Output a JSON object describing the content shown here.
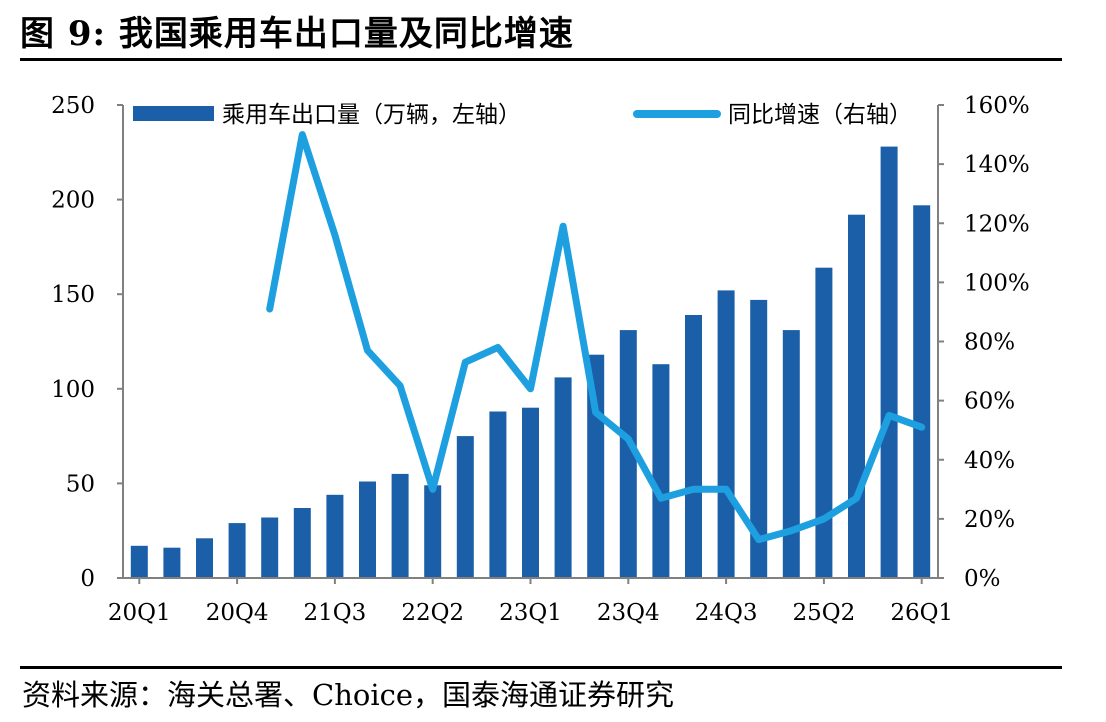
{
  "figure": {
    "title": "图 9:  我国乘用车出口量及同比增速",
    "source": "资料来源：海关总署、Choice，国泰海通证券研究"
  },
  "chart_data": {
    "type": "bar",
    "categories": [
      "20Q1",
      "20Q2",
      "20Q3",
      "20Q4",
      "21Q1",
      "21Q2",
      "21Q3",
      "21Q4",
      "22Q1",
      "22Q2",
      "22Q3",
      "22Q4",
      "23Q1",
      "23Q2",
      "23Q3",
      "23Q4",
      "24Q1",
      "24Q2",
      "24Q3",
      "24Q4",
      "25Q1",
      "25Q2",
      "25Q3",
      "25Q4",
      "26Q1"
    ],
    "x_tick_labels": [
      "20Q1",
      "20Q4",
      "21Q3",
      "22Q2",
      "23Q1",
      "23Q4",
      "24Q3",
      "25Q2",
      "26Q1"
    ],
    "series": [
      {
        "name": "乘用车出口量（万辆，左轴）",
        "type": "bar",
        "axis": "left",
        "color": "#1b5fa8",
        "values": [
          17,
          16,
          21,
          29,
          32,
          37,
          44,
          51,
          55,
          49,
          75,
          88,
          90,
          106,
          118,
          131,
          113,
          139,
          152,
          147,
          131,
          164,
          192,
          228,
          197
        ]
      },
      {
        "name": "同比增速（右轴）",
        "type": "line",
        "axis": "right",
        "color": "#1ea0e0",
        "values": [
          null,
          null,
          null,
          null,
          0.91,
          1.5,
          1.16,
          0.77,
          0.65,
          0.3,
          0.73,
          0.78,
          0.64,
          1.19,
          0.56,
          0.47,
          0.27,
          0.3,
          0.3,
          0.13,
          0.16,
          0.2,
          0.27,
          0.55,
          0.51
        ]
      }
    ],
    "y_left": {
      "min": 0,
      "max": 250,
      "ticks": [
        0,
        50,
        100,
        150,
        200,
        250
      ]
    },
    "y_right": {
      "min": 0,
      "max": 1.6,
      "ticks": [
        "0%",
        "20%",
        "40%",
        "60%",
        "80%",
        "100%",
        "120%",
        "140%",
        "160%"
      ]
    },
    "legend_position": "top",
    "grid": false
  }
}
